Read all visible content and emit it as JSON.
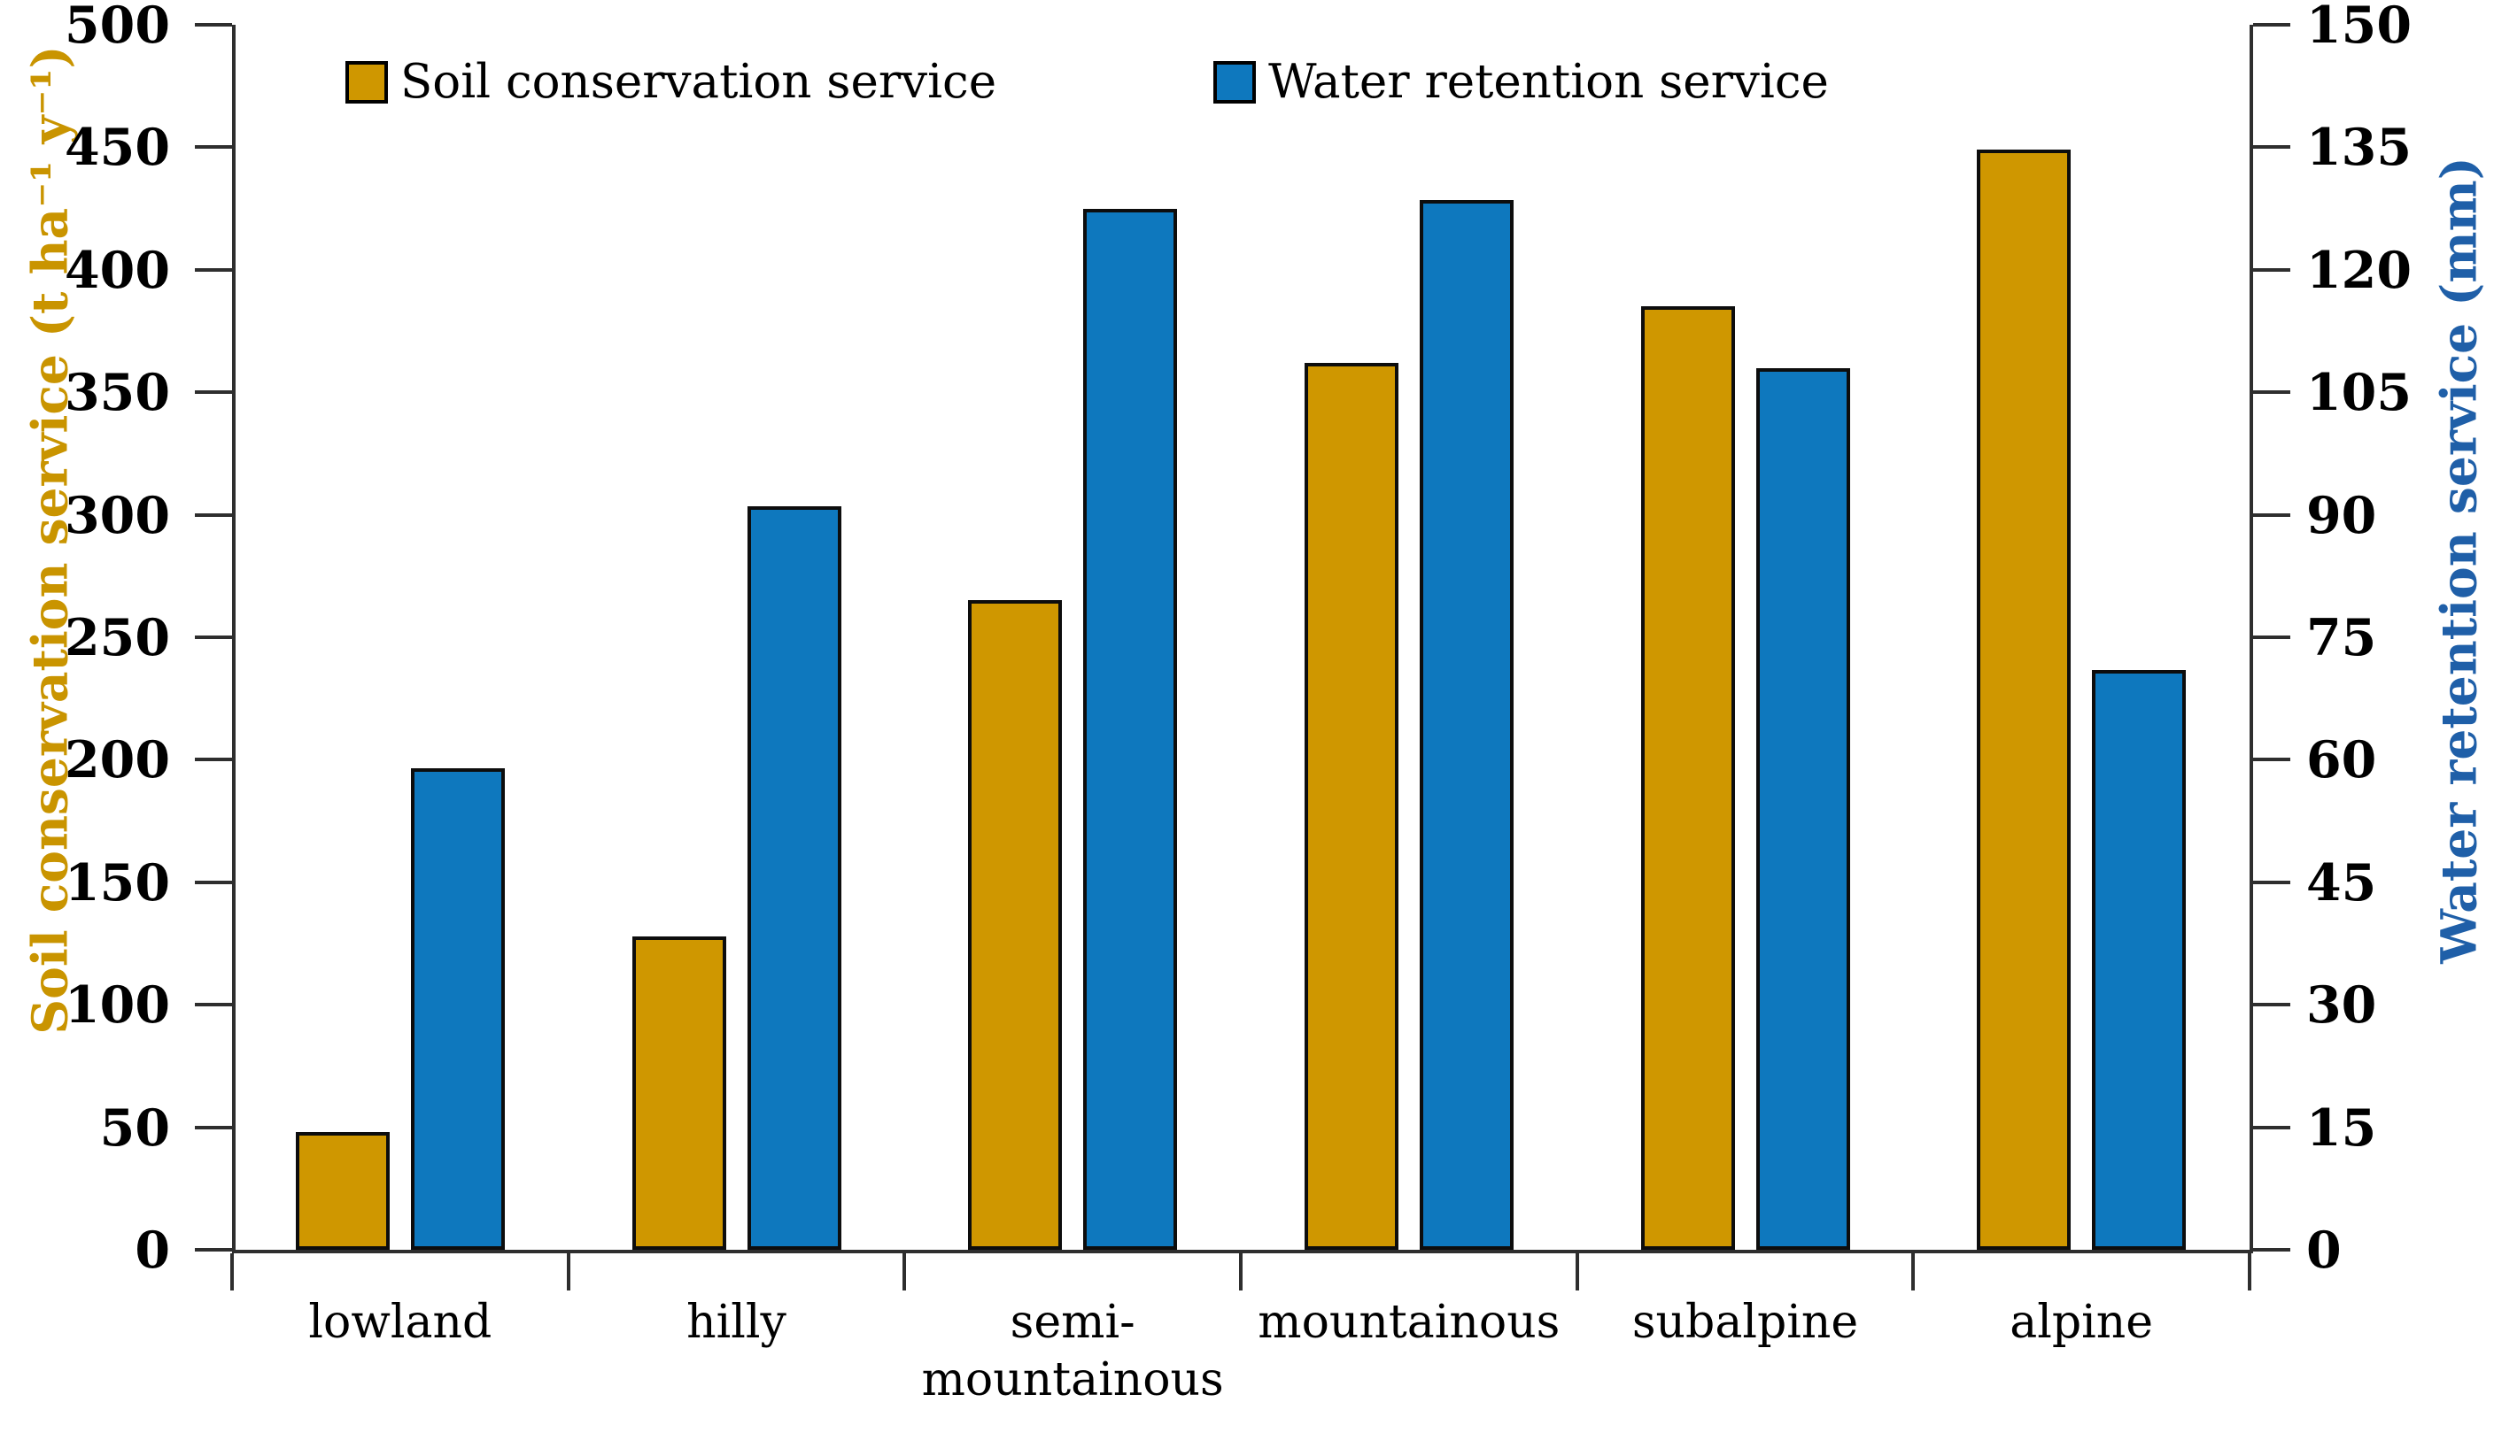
{
  "chart_data": {
    "type": "bar",
    "title": "",
    "categories": [
      "lowland",
      "hilly",
      "semi-mountainous",
      "mountainous",
      "subalpine",
      "alpine"
    ],
    "series": [
      {
        "name": "Soil conservation service",
        "axis": "left",
        "color": "#CF9700",
        "values": [
          48,
          128,
          265,
          362,
          385,
          449
        ]
      },
      {
        "name": "Water retention service",
        "axis": "right",
        "color": "#0E78BE",
        "values": [
          59,
          91,
          127.5,
          128.5,
          108,
          71
        ]
      }
    ],
    "left_axis": {
      "title": "Soil conservation service (t ha⁻¹ y⁻¹)",
      "color": "#C99400",
      "min": 0,
      "max": 500,
      "step": 50,
      "tick_labels": [
        "0",
        "50",
        "100",
        "150",
        "200",
        "250",
        "300",
        "350",
        "400",
        "450",
        "500"
      ]
    },
    "right_axis": {
      "title": "Water retention service (mm)",
      "color": "#1F5FA8",
      "min": 0,
      "max": 150,
      "step": 15,
      "tick_labels": [
        "0",
        "15",
        "30",
        "45",
        "60",
        "75",
        "90",
        "105",
        "120",
        "135",
        "150"
      ]
    },
    "xlabel": "",
    "legend_position": "top",
    "grid": false,
    "axis_line_color": "#2e2e2e"
  }
}
